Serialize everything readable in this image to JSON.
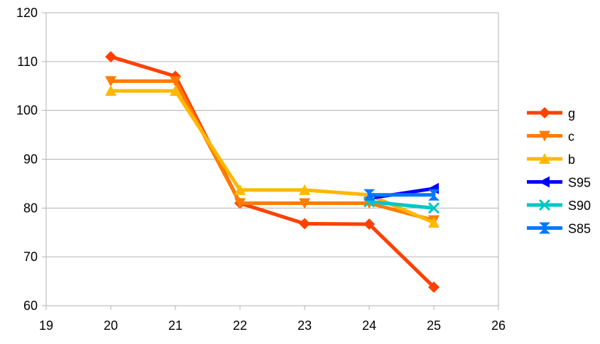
{
  "chart_data": {
    "type": "line",
    "title": "",
    "xlabel": "",
    "ylabel": "",
    "xlim": [
      19,
      26
    ],
    "ylim": [
      60,
      120
    ],
    "xticks": [
      19,
      20,
      21,
      22,
      23,
      24,
      25,
      26
    ],
    "yticks": [
      60,
      70,
      80,
      90,
      100,
      110,
      120
    ],
    "grid": "horizontal",
    "legend_position": "right",
    "series": [
      {
        "name": "g",
        "color": "#ff4000",
        "marker": "diamond",
        "x": [
          20,
          21,
          22,
          23,
          24,
          25
        ],
        "y": [
          111,
          107,
          81,
          76.8,
          76.7,
          63.8
        ]
      },
      {
        "name": "c",
        "color": "#ff7c00",
        "marker": "triangle-down",
        "x": [
          20,
          21,
          22,
          23,
          24,
          25
        ],
        "y": [
          106,
          106,
          81,
          81,
          81,
          77.5
        ]
      },
      {
        "name": "b",
        "color": "#ffb800",
        "marker": "triangle-up",
        "x": [
          20,
          21,
          22,
          23,
          24,
          25
        ],
        "y": [
          104,
          104,
          83.7,
          83.7,
          82.7,
          77
        ]
      },
      {
        "name": "S95",
        "color": "#0000ff",
        "marker": "triangle-left",
        "x": [
          24,
          25
        ],
        "y": [
          82,
          84
        ]
      },
      {
        "name": "S90",
        "color": "#00c6c6",
        "marker": "x",
        "x": [
          24,
          25
        ],
        "y": [
          81.3,
          80
        ]
      },
      {
        "name": "S85",
        "color": "#0078ff",
        "marker": "hourglass",
        "x": [
          24,
          25
        ],
        "y": [
          82.7,
          82.7
        ]
      }
    ]
  }
}
